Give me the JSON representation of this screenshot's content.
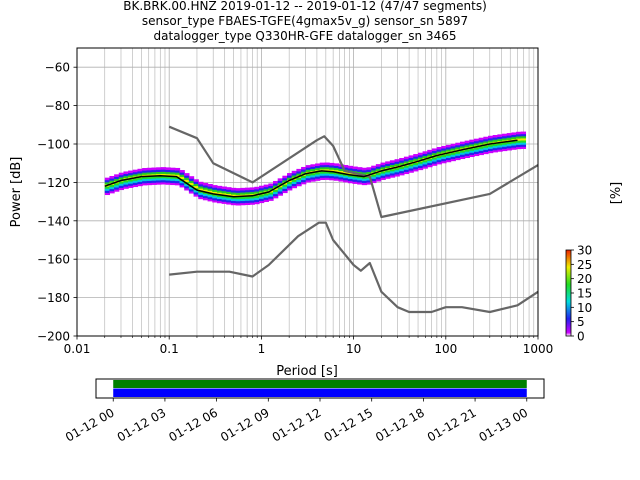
{
  "chart_data": [
    {
      "type": "line",
      "title_lines": [
        "BK.BRK.00.HNZ   2019-01-12 -- 2019-01-12  (47/47 segments)",
        "sensor_type FBAES-TGFE(4gmax5v_g) sensor_sn 5897",
        "datalogger_type Q330HR-GFE datalogger_sn 3465"
      ],
      "xlabel": "Period [s]",
      "ylabel": "Power [dB]",
      "xscale": "log",
      "xlim": [
        0.01,
        1000
      ],
      "ylim": [
        -200,
        -50
      ],
      "x_ticks": [
        {
          "value": 0.01,
          "label": "0.01"
        },
        {
          "value": 0.1,
          "label": "0.1"
        },
        {
          "value": 1,
          "label": "1"
        },
        {
          "value": 10,
          "label": "10"
        },
        {
          "value": 100,
          "label": "100"
        },
        {
          "value": 1000,
          "label": "1000"
        }
      ],
      "y_ticks": [
        {
          "value": -200,
          "label": "−200"
        },
        {
          "value": -180,
          "label": "−180"
        },
        {
          "value": -160,
          "label": "−160"
        },
        {
          "value": -140,
          "label": "−140"
        },
        {
          "value": -120,
          "label": "−120"
        },
        {
          "value": -100,
          "label": "−100"
        },
        {
          "value": -80,
          "label": "−80"
        },
        {
          "value": -60,
          "label": "−60"
        }
      ],
      "grid": true,
      "series": [
        {
          "color": "#666666",
          "x": [
            0.1,
            0.2,
            0.3,
            0.8,
            4.0,
            4.8,
            6.0,
            8.0,
            15.0,
            20.0,
            300.0,
            1000.0
          ],
          "y": [
            -91,
            -97,
            -110,
            -120,
            -98,
            -96,
            -101,
            -114,
            -117,
            -138,
            -126,
            -111
          ]
        },
        {
          "color": "#666666",
          "x": [
            0.1,
            0.2,
            0.45,
            0.8,
            1.2,
            2.5,
            4.2,
            5.0,
            6.0,
            10.0,
            12.0,
            15.0,
            20.0,
            30.0,
            40.0,
            70.0,
            100.0,
            150.0,
            300.0,
            600.0,
            1000.0
          ],
          "y": [
            -168,
            -166.5,
            -166.5,
            -169,
            -163,
            -148,
            -141,
            -141,
            -150,
            -163,
            -166,
            -162,
            -177,
            -185,
            -187.5,
            -187.5,
            -185,
            -185,
            -187.5,
            -184,
            -177
          ]
        },
        {
          "color": "#000000",
          "x": [
            0.02,
            0.03,
            0.05,
            0.08,
            0.12,
            0.2,
            0.3,
            0.5,
            0.8,
            1.2,
            2.0,
            3.0,
            4.5,
            6.0,
            9.0,
            13.0,
            20.0,
            30.0,
            50.0,
            80.0,
            150.0,
            300.0,
            600.0
          ],
          "y": [
            -122,
            -119,
            -117,
            -116.5,
            -117,
            -124,
            -126,
            -127.5,
            -127,
            -125,
            -119,
            -115.5,
            -114,
            -114.5,
            -116,
            -117,
            -114,
            -112,
            -109,
            -106,
            -103,
            -100,
            -98
          ]
        }
      ],
      "colorbar": {
        "label": "[%]",
        "min": 0,
        "max": 30,
        "ticks": [
          {
            "value": 0,
            "label": "0"
          },
          {
            "value": 5,
            "label": "5"
          },
          {
            "value": 10,
            "label": "10"
          },
          {
            "value": 15,
            "label": "15"
          },
          {
            "value": 20,
            "label": "20"
          },
          {
            "value": 25,
            "label": "25"
          },
          {
            "value": 30,
            "label": "30"
          }
        ]
      }
    },
    {
      "type": "bar",
      "xlim_hours": [
        -1,
        25
      ],
      "data_coverage_hours": [
        0,
        24
      ],
      "coverage_colors": [
        "#008000",
        "#0000ff"
      ],
      "x_ticks": [
        {
          "value": 0,
          "label": "01-12 00"
        },
        {
          "value": 3,
          "label": "01-12 03"
        },
        {
          "value": 6,
          "label": "01-12 06"
        },
        {
          "value": 9,
          "label": "01-12 09"
        },
        {
          "value": 12,
          "label": "01-12 12"
        },
        {
          "value": 15,
          "label": "01-12 15"
        },
        {
          "value": 18,
          "label": "01-12 18"
        },
        {
          "value": 21,
          "label": "01-12 21"
        },
        {
          "value": 24,
          "label": "01-13 00"
        }
      ]
    }
  ]
}
